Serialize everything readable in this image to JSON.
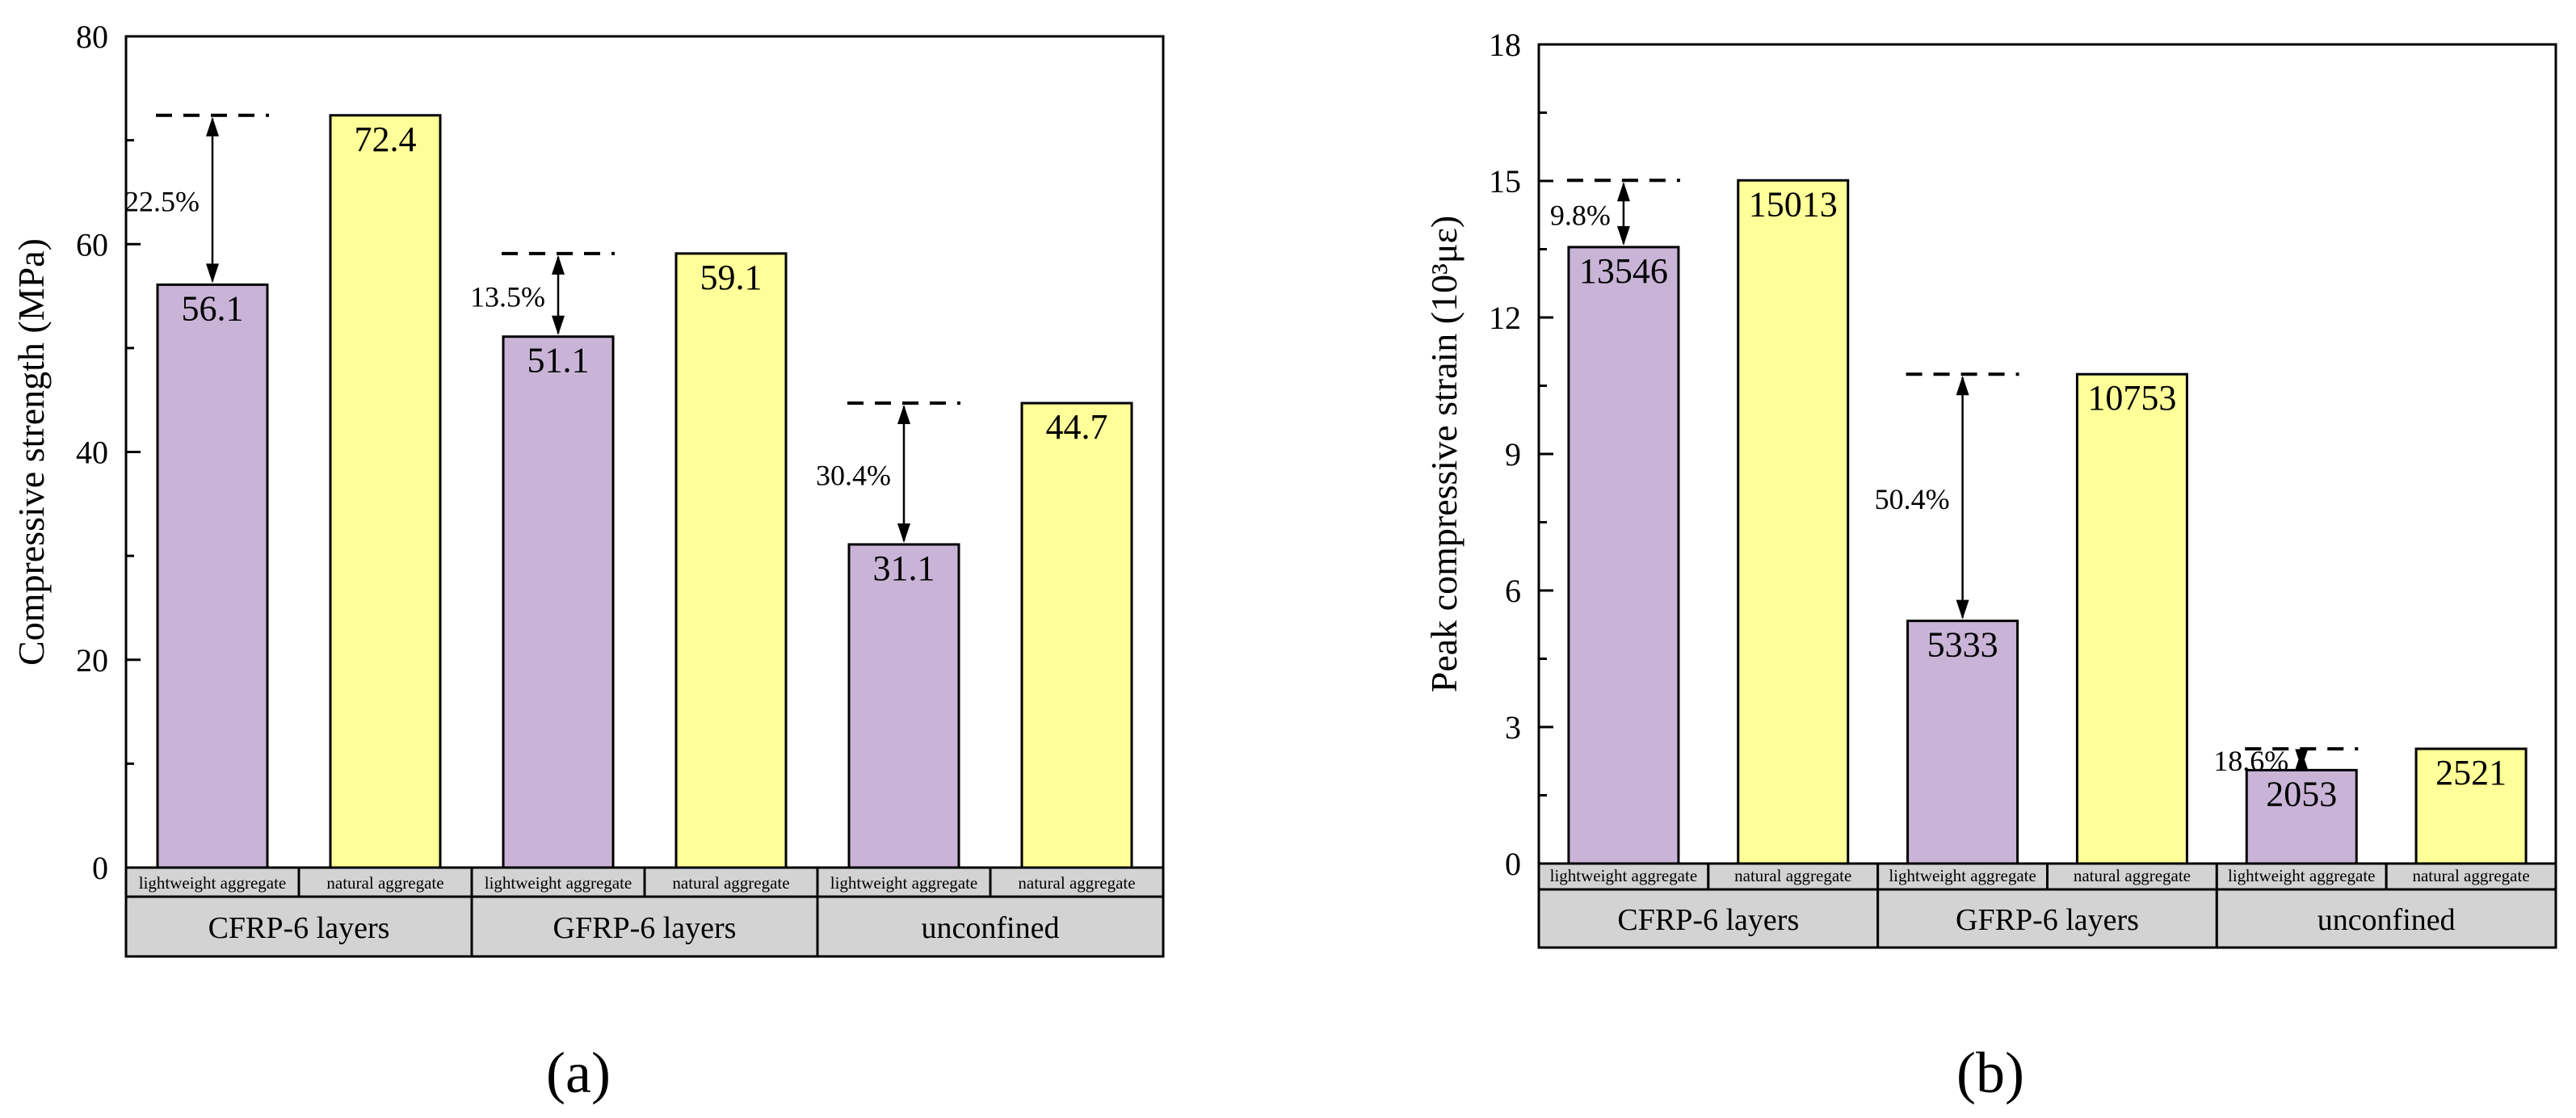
{
  "chart_data": [
    {
      "type": "bar",
      "panel_label": "(a)",
      "ylabel": "Compressive strength (MPa)",
      "ylim": [
        0,
        80
      ],
      "yticks": [
        0,
        20,
        40,
        60,
        80
      ],
      "ytick_labels": [
        "0",
        "20",
        "40",
        "60",
        "80"
      ],
      "groups": [
        "CFRP-6 layers",
        "GFRP-6 layers",
        "unconfined"
      ],
      "subcategories": [
        "lightweight aggregate",
        "natural aggregate"
      ],
      "series": [
        {
          "name": "lightweight aggregate",
          "color": "#c9b4d8",
          "values": [
            56.1,
            51.1,
            31.1
          ],
          "labels": [
            "56.1",
            "51.1",
            "31.1"
          ]
        },
        {
          "name": "natural aggregate",
          "color": "#ffff99",
          "values": [
            72.4,
            59.1,
            44.7
          ],
          "labels": [
            "72.4",
            "59.1",
            "44.7"
          ]
        }
      ],
      "annotations": [
        "22.5%",
        "13.5%",
        "30.4%"
      ]
    },
    {
      "type": "bar",
      "panel_label": "(b)",
      "ylabel": "Peak compressive strain (10³με)",
      "ylim": [
        0,
        18
      ],
      "yticks": [
        0,
        3,
        6,
        9,
        12,
        15,
        18
      ],
      "ytick_labels": [
        "0",
        "3",
        "6",
        "9",
        "12",
        "15",
        "18"
      ],
      "groups": [
        "CFRP-6 layers",
        "GFRP-6 layers",
        "unconfined"
      ],
      "subcategories": [
        "lightweight aggregate",
        "natural aggregate"
      ],
      "series": [
        {
          "name": "lightweight aggregate",
          "color": "#c9b4d8",
          "values": [
            13.546,
            5.333,
            2.053
          ],
          "labels": [
            "13546",
            "5333",
            "2053"
          ]
        },
        {
          "name": "natural aggregate",
          "color": "#ffff99",
          "values": [
            15.013,
            10.753,
            2.521
          ],
          "labels": [
            "15013",
            "10753",
            "2521"
          ]
        }
      ],
      "annotations": [
        "9.8%",
        "50.4%",
        "18.6%"
      ]
    }
  ]
}
